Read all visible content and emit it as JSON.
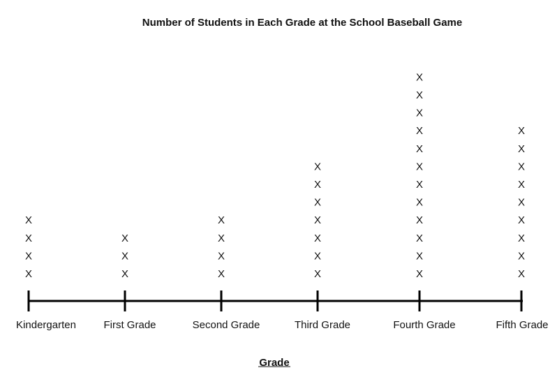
{
  "chart_data": {
    "type": "line plot",
    "title": "Number of Students in Each Grade at the School Baseball Game",
    "xlabel": "Grade",
    "ylabel": "",
    "mark_symbol": "X",
    "categories": [
      "Kindergarten",
      "First Grade",
      "Second Grade",
      "Third Grade",
      "Fourth Grade",
      "Fifth Grade"
    ],
    "values": [
      4,
      3,
      4,
      7,
      12,
      9
    ],
    "grid": false,
    "legend": "none",
    "line_color": "#000000",
    "text_color": "#111111"
  }
}
